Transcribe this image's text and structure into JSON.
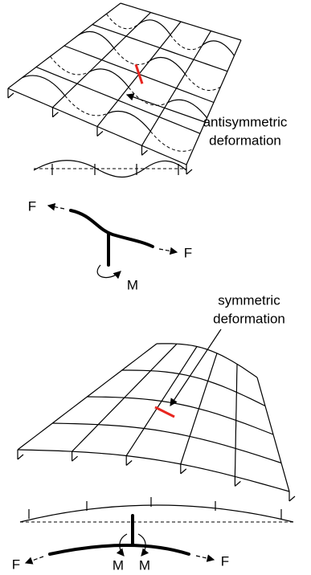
{
  "top": {
    "annotation": [
      "antisymmetric",
      "deformation"
    ],
    "force_left": "F",
    "force_right": "F",
    "moment": "M"
  },
  "bottom": {
    "annotation": [
      "symmetric",
      "deformation"
    ],
    "force_left": "F",
    "force_right": "F",
    "moment_left": "M",
    "moment_right": "M"
  }
}
